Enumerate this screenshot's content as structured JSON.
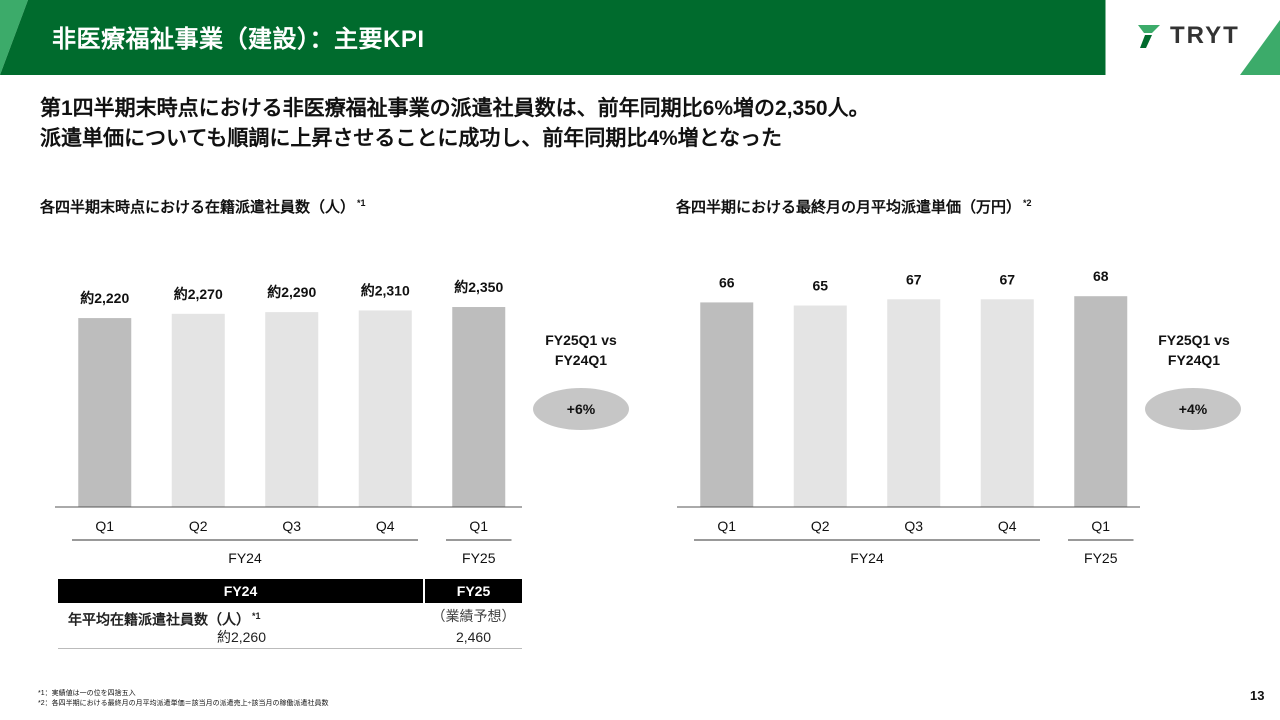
{
  "header": {
    "title": "非医療福祉事業（建設）：主要KPI",
    "logo_text": "TRYT",
    "color_dark": "#006b2d",
    "color_light": "#3cab6a"
  },
  "headline": {
    "line1": "第1四半期末時点における非医療福祉事業の派遣社員数は、前年同期比6%増の2,350人。",
    "line2": "派遣単価についても順調に上昇させることに成功し、前年同期比4%増となった"
  },
  "chart_left_title": "各四半期末時点における在籍派遣社員数（人）",
  "chart_left_note": "*1",
  "chart_right_title": "各四半期における最終月の月平均派遣単価（万円）",
  "chart_right_note": "*2",
  "chart_data": [
    {
      "type": "bar",
      "categories": [
        "Q1",
        "Q2",
        "Q3",
        "Q4",
        "Q1"
      ],
      "groups": [
        {
          "label": "FY24",
          "span": [
            0,
            3
          ]
        },
        {
          "label": "FY25",
          "span": [
            4,
            4
          ]
        }
      ],
      "values": [
        2220,
        2270,
        2290,
        2310,
        2350
      ],
      "data_labels": [
        "約2,220",
        "約2,270",
        "約2,290",
        "約2,310",
        "約2,350"
      ],
      "colors": [
        "#bdbdbd",
        "#e4e4e4",
        "#e4e4e4",
        "#e4e4e4",
        "#bdbdbd"
      ],
      "title": "各四半期末時点における在籍派遣社員数（人）",
      "ylim": [
        0,
        2550
      ],
      "grid": false
    },
    {
      "type": "bar",
      "categories": [
        "Q1",
        "Q2",
        "Q3",
        "Q4",
        "Q1"
      ],
      "groups": [
        {
          "label": "FY24",
          "span": [
            0,
            3
          ]
        },
        {
          "label": "FY25",
          "span": [
            4,
            4
          ]
        }
      ],
      "values": [
        66,
        65,
        67,
        67,
        68
      ],
      "data_labels": [
        "66",
        "65",
        "67",
        "67",
        "68"
      ],
      "colors": [
        "#bdbdbd",
        "#e4e4e4",
        "#e4e4e4",
        "#e4e4e4",
        "#bdbdbd"
      ],
      "title": "各四半期における最終月の月平均派遣単価（万円）",
      "ylim": [
        0,
        70
      ],
      "grid": false
    }
  ],
  "compare_left": {
    "label_line1": "FY25Q1 vs",
    "label_line2": "FY24Q1",
    "badge": "+6%"
  },
  "compare_right": {
    "label_line1": "FY25Q1 vs",
    "label_line2": "FY24Q1",
    "badge": "+4%"
  },
  "table": {
    "col1_header": "FY24",
    "col2_header": "FY25",
    "row_label": "年平均在籍派遣社員数（人）",
    "row_note": "*1",
    "forecast_label": "（業績予想）",
    "fy24_value": "約2,260",
    "fy25_value": "2,460"
  },
  "footnotes": {
    "note1": "*1：実績値は一の位を四捨五入",
    "note2": "*2：各四半期における最終月の月平均派遣単価＝該当月の派遣売上÷該当月の稼働派遣社員数"
  },
  "page_number": "13"
}
